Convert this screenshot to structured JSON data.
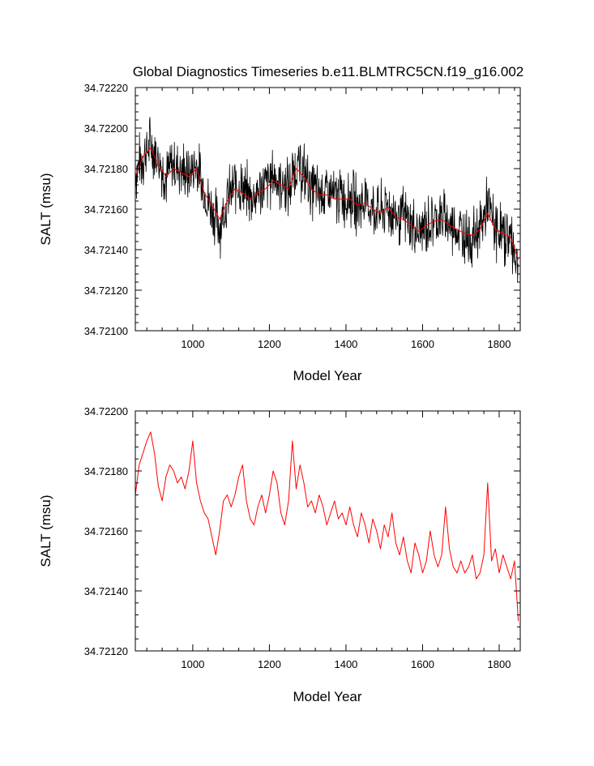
{
  "figure": {
    "title": "Global Diagnostics Timeseries b.e11.BLMTRC5CN.f19_g16.002"
  },
  "chart_data": [
    {
      "type": "line",
      "title": "Global Diagnostics Timeseries b.e11.BLMTRC5CN.f19_g16.002",
      "xlabel": "Model Year",
      "ylabel": "SALT (msu)",
      "xlim": [
        850,
        1855
      ],
      "ylim": [
        34.721,
        34.7222
      ],
      "x_ticks": [
        1000,
        1200,
        1400,
        1600,
        1800
      ],
      "x_tick_labels": [
        "1000",
        "1200",
        "1400",
        "1600",
        "1800"
      ],
      "y_ticks": [
        34.721,
        34.7212,
        34.7214,
        34.7216,
        34.7218,
        34.722,
        34.7222
      ],
      "y_tick_labels": [
        "34.72100",
        "34.72120",
        "34.72140",
        "34.72160",
        "34.72180",
        "34.72200",
        "34.72220"
      ],
      "grid": false,
      "legend": "none",
      "series": [
        {
          "role": "annual",
          "color": "#000000",
          "x": [
            850,
            870,
            890,
            910,
            930,
            950,
            970,
            990,
            1010,
            1030,
            1050,
            1070,
            1090,
            1110,
            1130,
            1150,
            1170,
            1190,
            1210,
            1230,
            1250,
            1270,
            1290,
            1310,
            1330,
            1350,
            1370,
            1390,
            1410,
            1430,
            1450,
            1470,
            1490,
            1510,
            1530,
            1550,
            1570,
            1590,
            1610,
            1630,
            1650,
            1670,
            1690,
            1710,
            1730,
            1750,
            1770,
            1790,
            1810,
            1830,
            1850
          ],
          "y": [
            34.72178,
            34.72186,
            34.72192,
            34.72185,
            34.72176,
            34.72182,
            34.7218,
            34.72176,
            34.72182,
            34.72168,
            34.7216,
            34.72152,
            34.72164,
            34.72172,
            34.7217,
            34.72166,
            34.72168,
            34.72172,
            34.72176,
            34.72174,
            34.7217,
            34.72182,
            34.72178,
            34.7217,
            34.72168,
            34.72168,
            34.72166,
            34.72166,
            34.72166,
            34.72162,
            34.72164,
            34.7216,
            34.72158,
            34.72162,
            34.72156,
            34.72156,
            34.72152,
            34.72148,
            34.72152,
            34.72155,
            34.72156,
            34.72152,
            34.7215,
            34.72148,
            34.72146,
            34.7215,
            34.72162,
            34.7215,
            34.72148,
            34.72146,
            34.72132
          ]
        },
        {
          "role": "smoothed",
          "color": "#ff0000",
          "x": [
            850,
            870,
            890,
            910,
            930,
            950,
            970,
            990,
            1010,
            1030,
            1050,
            1070,
            1090,
            1110,
            1130,
            1150,
            1170,
            1190,
            1210,
            1230,
            1250,
            1270,
            1290,
            1310,
            1330,
            1350,
            1370,
            1390,
            1410,
            1430,
            1450,
            1470,
            1490,
            1510,
            1530,
            1550,
            1570,
            1590,
            1610,
            1630,
            1650,
            1670,
            1690,
            1710,
            1730,
            1750,
            1770,
            1790,
            1810,
            1830,
            1850
          ],
          "y": [
            34.72176,
            34.72186,
            34.7219,
            34.72182,
            34.72176,
            34.7218,
            34.72178,
            34.72176,
            34.7218,
            34.72168,
            34.72162,
            34.72155,
            34.72164,
            34.7217,
            34.72168,
            34.72165,
            34.72168,
            34.7217,
            34.72174,
            34.72172,
            34.7217,
            34.7218,
            34.72176,
            34.7217,
            34.72167,
            34.72167,
            34.72165,
            34.72165,
            34.72165,
            34.72162,
            34.72163,
            34.7216,
            34.72158,
            34.72161,
            34.72156,
            34.72155,
            34.72152,
            34.72149,
            34.72152,
            34.72154,
            34.72155,
            34.72152,
            34.7215,
            34.72148,
            34.72147,
            34.7215,
            34.72158,
            34.7215,
            34.72148,
            34.72146,
            34.72135
          ]
        }
      ]
    },
    {
      "type": "line",
      "xlabel": "Model Year",
      "ylabel": "SALT (msu)",
      "xlim": [
        850,
        1855
      ],
      "ylim": [
        34.7212,
        34.722
      ],
      "x_ticks": [
        1000,
        1200,
        1400,
        1600,
        1800
      ],
      "x_tick_labels": [
        "1000",
        "1200",
        "1400",
        "1600",
        "1800"
      ],
      "y_ticks": [
        34.7212,
        34.7214,
        34.7216,
        34.7218,
        34.722
      ],
      "y_tick_labels": [
        "34.72120",
        "34.72140",
        "34.72160",
        "34.72180",
        "34.72200"
      ],
      "grid": false,
      "legend": "none",
      "series": [
        {
          "role": "smoothed",
          "color": "#ff0000",
          "x": [
            850,
            860,
            870,
            880,
            890,
            900,
            910,
            920,
            930,
            940,
            950,
            960,
            970,
            980,
            990,
            1000,
            1010,
            1020,
            1030,
            1040,
            1050,
            1060,
            1070,
            1080,
            1090,
            1100,
            1110,
            1120,
            1130,
            1140,
            1150,
            1160,
            1170,
            1180,
            1190,
            1200,
            1210,
            1220,
            1230,
            1240,
            1250,
            1260,
            1270,
            1280,
            1290,
            1300,
            1310,
            1320,
            1330,
            1340,
            1350,
            1360,
            1370,
            1380,
            1390,
            1400,
            1410,
            1420,
            1430,
            1440,
            1450,
            1460,
            1470,
            1480,
            1490,
            1500,
            1510,
            1520,
            1530,
            1540,
            1550,
            1560,
            1570,
            1580,
            1590,
            1600,
            1610,
            1620,
            1630,
            1640,
            1650,
            1660,
            1670,
            1680,
            1690,
            1700,
            1710,
            1720,
            1730,
            1740,
            1750,
            1760,
            1770,
            1780,
            1790,
            1800,
            1810,
            1820,
            1830,
            1840,
            1850
          ],
          "y": [
            34.72172,
            34.72182,
            34.72186,
            34.7219,
            34.72193,
            34.72186,
            34.72175,
            34.7217,
            34.72178,
            34.72182,
            34.7218,
            34.72176,
            34.72178,
            34.72174,
            34.7218,
            34.7219,
            34.72176,
            34.7217,
            34.72166,
            34.72164,
            34.72158,
            34.72152,
            34.7216,
            34.7217,
            34.72172,
            34.72168,
            34.72172,
            34.72178,
            34.72182,
            34.7217,
            34.72164,
            34.72162,
            34.72168,
            34.72172,
            34.72166,
            34.72172,
            34.7218,
            34.72176,
            34.72166,
            34.72162,
            34.7217,
            34.7219,
            34.72174,
            34.72182,
            34.72176,
            34.72168,
            34.7217,
            34.72166,
            34.72172,
            34.72168,
            34.72162,
            34.72166,
            34.7217,
            34.72164,
            34.72166,
            34.72162,
            34.72168,
            34.72162,
            34.72158,
            34.72166,
            34.72162,
            34.72156,
            34.72164,
            34.7216,
            34.72154,
            34.72162,
            34.72158,
            34.72166,
            34.72156,
            34.72152,
            34.72158,
            34.7215,
            34.72146,
            34.72156,
            34.72152,
            34.72146,
            34.7215,
            34.7216,
            34.72152,
            34.72148,
            34.72152,
            34.72168,
            34.72154,
            34.72148,
            34.72146,
            34.7215,
            34.72146,
            34.72148,
            34.72152,
            34.72144,
            34.72146,
            34.72152,
            34.72176,
            34.7215,
            34.72154,
            34.72146,
            34.72152,
            34.72148,
            34.72144,
            34.7215,
            34.7213
          ]
        }
      ]
    }
  ]
}
